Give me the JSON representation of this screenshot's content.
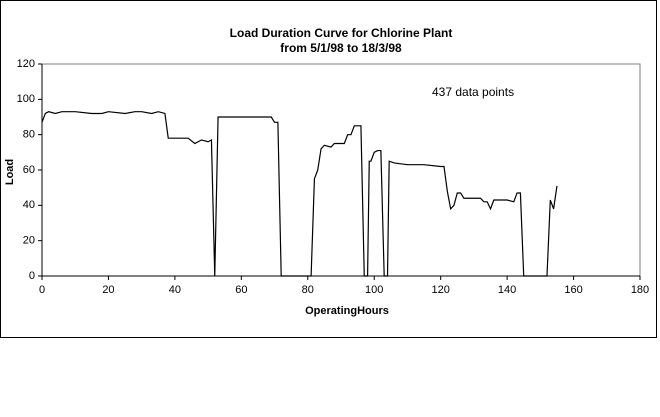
{
  "chart_data": {
    "type": "line",
    "title": "Load Duration Curve for Chlorine Plant",
    "subtitle": "from 5/1/98 to 18/3/98",
    "annotation": "437 data points",
    "xlabel": "OperatingHours",
    "ylabel": "Load",
    "color": "#000000",
    "x": [
      0,
      1,
      2,
      4,
      6,
      8,
      10,
      15,
      18,
      20,
      25,
      28,
      30,
      33,
      35,
      37,
      38,
      40,
      44,
      46,
      48,
      50,
      51,
      52,
      53,
      55,
      60,
      65,
      69,
      70,
      71,
      72,
      81,
      82,
      83,
      84,
      85,
      87,
      88,
      91,
      92,
      93,
      94,
      96,
      97,
      98,
      98.5,
      99,
      100,
      101,
      102,
      103,
      104,
      104.5,
      106,
      110,
      115,
      120,
      121,
      122,
      123,
      124,
      125,
      126,
      127,
      130,
      132,
      133,
      134,
      135,
      136,
      140,
      142,
      143,
      144,
      145,
      152,
      153,
      154,
      155
    ],
    "values": [
      87,
      92,
      93,
      92,
      93,
      93,
      93,
      92,
      92,
      93,
      92,
      93,
      93,
      92,
      93,
      92,
      78,
      78,
      78,
      75,
      77,
      76,
      77,
      0,
      90,
      90,
      90,
      90,
      90,
      87,
      87,
      0,
      0,
      55,
      60,
      72,
      74,
      73,
      75,
      75,
      80,
      80,
      85,
      85,
      0,
      0,
      65,
      65,
      70,
      71,
      71,
      0,
      0,
      65,
      64,
      63,
      63,
      62,
      62,
      48,
      38,
      40,
      47,
      47,
      44,
      44,
      44,
      42,
      42,
      38,
      43,
      43,
      42,
      47,
      47,
      0,
      0,
      43,
      38,
      51
    ],
    "xlim": [
      0,
      180
    ],
    "xticks": [
      0,
      20,
      40,
      60,
      80,
      100,
      120,
      140,
      160,
      180
    ],
    "ylim": [
      0,
      120
    ],
    "yticks": [
      0,
      20,
      40,
      60,
      80,
      100,
      120
    ]
  }
}
